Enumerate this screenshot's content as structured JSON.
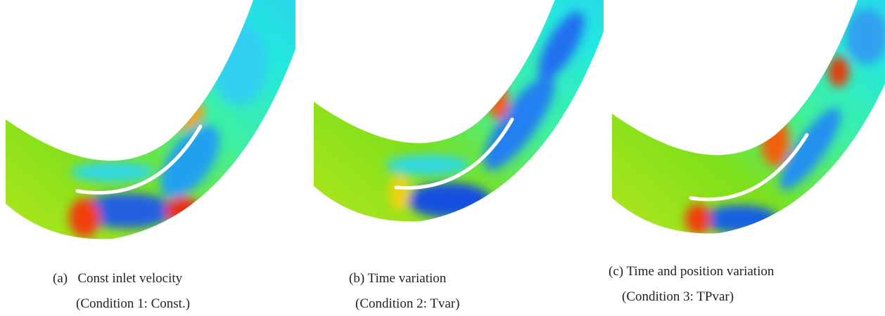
{
  "panels": [
    {
      "caption": "(a)   Const inlet velocity",
      "condition": "(Condition 1: Const.)"
    },
    {
      "caption": "(b) Time variation",
      "condition": "(Condition 2: Tvar)"
    },
    {
      "caption": "(c) Time and position variation",
      "condition": "(Condition 3: TPvar)"
    }
  ]
}
